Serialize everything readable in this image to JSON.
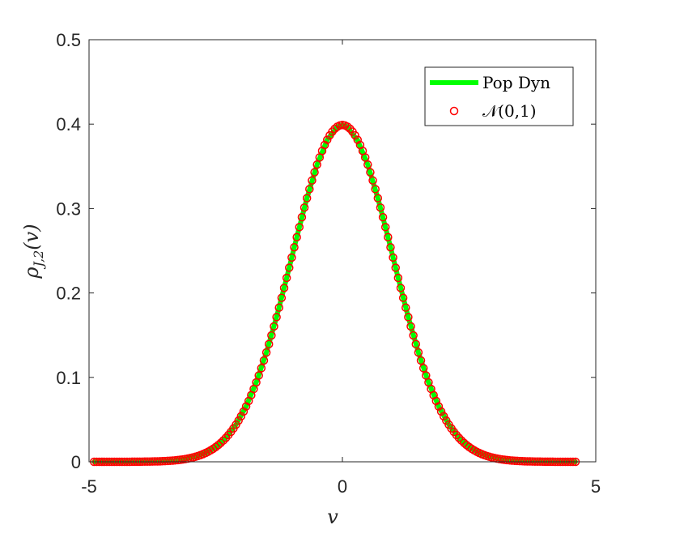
{
  "chart_data": {
    "type": "line",
    "title": "",
    "xlabel": "v",
    "ylabel": "ρ_{J,2}(v)",
    "ylabel_parts": {
      "main": "ρ",
      "sub": "J,2",
      "arg": "(v)"
    },
    "xlim": [
      -5,
      5
    ],
    "ylim": [
      0,
      0.5
    ],
    "xticks": [
      -5,
      0,
      5
    ],
    "xtick_labels": [
      "-5",
      "0",
      "5"
    ],
    "yticks": [
      0,
      0.1,
      0.2,
      0.3,
      0.4,
      0.5
    ],
    "ytick_labels": [
      "0",
      "0.1",
      "0.2",
      "0.3",
      "0.4",
      "0.5"
    ],
    "grid": false,
    "legend_position": "top-right",
    "series": [
      {
        "name": "Pop Dyn",
        "style": "line",
        "color": "#00ff00",
        "x": [
          -4.9,
          -4.7,
          -4.5,
          -4.3,
          -4.1,
          -3.9,
          -3.7,
          -3.5,
          -3.3,
          -3.1,
          -2.9,
          -2.7,
          -2.5,
          -2.3,
          -2.1,
          -1.9,
          -1.7,
          -1.5,
          -1.3,
          -1.1,
          -0.9,
          -0.7,
          -0.5,
          -0.3,
          -0.1,
          0.0,
          0.1,
          0.2,
          0.3,
          0.5,
          0.7,
          0.9,
          1.1,
          1.3,
          1.5,
          1.7,
          1.9,
          2.1,
          2.3,
          2.5,
          2.7,
          2.9,
          3.1,
          3.3,
          3.5,
          3.7,
          3.9,
          4.1,
          4.3,
          4.5,
          4.6
        ],
        "y": [
          0.0,
          0.0,
          0.0,
          0.0,
          0.0001,
          0.0002,
          0.0004,
          0.0009,
          0.0017,
          0.0033,
          0.006,
          0.0104,
          0.0175,
          0.0283,
          0.044,
          0.0656,
          0.094,
          0.1295,
          0.1714,
          0.2179,
          0.2661,
          0.3123,
          0.3521,
          0.3814,
          0.397,
          0.3989,
          0.397,
          0.388,
          0.381,
          0.3521,
          0.3123,
          0.2661,
          0.2179,
          0.1714,
          0.1295,
          0.094,
          0.0656,
          0.044,
          0.0283,
          0.0175,
          0.0104,
          0.006,
          0.0033,
          0.0017,
          0.0009,
          0.0004,
          0.0002,
          0.0001,
          0.0,
          0.0,
          0.0
        ]
      },
      {
        "name": "𝒩(0,1)",
        "style": "markers",
        "marker": "circle-open",
        "color": "#ff0000",
        "x_start": -4.9,
        "x_end": 4.6,
        "step": 0.05,
        "formula": "standard normal pdf"
      }
    ]
  }
}
